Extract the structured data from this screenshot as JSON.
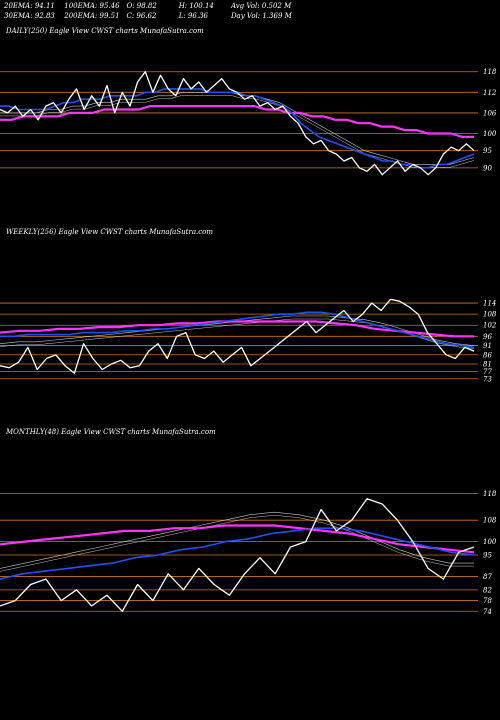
{
  "header": {
    "row1": [
      "20EMA: 94.11",
      "100EMA: 95.46",
      "O: 98.82",
      "H: 100.14",
      "Avg Vol: 0.502  M"
    ],
    "row2": [
      "30EMA: 92.83",
      "200EMA: 99.51",
      "C: 96.62",
      "L: 96.36",
      "Day Vol: 1.369 M"
    ]
  },
  "colors": {
    "background": "#000000",
    "price": "#ffffff",
    "ema_fast": "#1e50ff",
    "ema_slow": "#ff33ff",
    "grid": "#c8781e",
    "ema_thin": "#c8c8c8"
  },
  "chart_data": [
    {
      "type": "line",
      "label": "DAILY(250) Eagle  View  CWST charts MunafaSutra.com",
      "yticks": [
        "118",
        "112",
        "106",
        "100",
        "95",
        "90"
      ],
      "ylim": [
        85,
        122
      ],
      "series": [
        {
          "role": "price",
          "values": [
            107,
            106,
            108,
            105,
            107,
            104,
            108,
            109,
            106,
            110,
            113,
            107,
            111,
            108,
            114,
            106,
            112,
            108,
            115,
            118,
            112,
            117,
            113,
            111,
            116,
            113,
            115,
            112,
            114,
            116,
            113,
            112,
            110,
            111,
            108,
            109,
            107,
            108,
            105,
            103,
            99,
            97,
            98,
            95,
            94,
            92,
            93,
            90,
            89,
            91,
            88,
            90,
            92,
            89,
            91,
            90,
            88,
            90,
            94,
            96,
            95,
            97,
            95
          ]
        },
        {
          "role": "ema-blue",
          "values": [
            108,
            108,
            107,
            107,
            107,
            107,
            108,
            109,
            109,
            110,
            110,
            110,
            111,
            111,
            111,
            111,
            112,
            112,
            113,
            113,
            113,
            113,
            113,
            112,
            112,
            112,
            112,
            111,
            111,
            110,
            109,
            108,
            106,
            103,
            101,
            99,
            98,
            97,
            96,
            95,
            94,
            93,
            92,
            92,
            91,
            91,
            90,
            90,
            91,
            91,
            92,
            93,
            94
          ]
        },
        {
          "role": "ema-magenta",
          "values": [
            104,
            104,
            105,
            105,
            105,
            105,
            106,
            106,
            106,
            107,
            107,
            107,
            107,
            108,
            108,
            108,
            108,
            108,
            108,
            108,
            108,
            108,
            108,
            107,
            107,
            106,
            106,
            105,
            105,
            104,
            104,
            103,
            103,
            102,
            102,
            101,
            101,
            100,
            100,
            100,
            99,
            99
          ]
        },
        {
          "role": "ema-thin",
          "values": [
            106,
            106,
            106,
            106,
            107,
            107,
            108,
            108,
            109,
            109,
            110,
            110,
            110,
            111,
            111,
            112,
            112,
            112,
            112,
            112,
            111,
            111,
            110,
            109,
            107,
            105,
            103,
            101,
            99,
            97,
            95,
            94,
            93,
            92,
            91,
            91,
            91,
            91,
            92,
            93
          ]
        }
      ]
    },
    {
      "type": "line",
      "label": "WEEKLY(256) Eagle  View  CWST charts MunafaSutra.com",
      "yticks": [
        "114",
        "108",
        "102",
        "96",
        "91",
        "86",
        "81",
        "77",
        "73"
      ],
      "ylim": [
        68,
        120
      ],
      "series": [
        {
          "role": "price",
          "values": [
            80,
            79,
            82,
            90,
            78,
            84,
            86,
            80,
            76,
            92,
            84,
            78,
            81,
            83,
            79,
            80,
            88,
            92,
            84,
            96,
            98,
            86,
            84,
            88,
            82,
            86,
            90,
            80,
            84,
            88,
            92,
            96,
            100,
            104,
            98,
            102,
            106,
            110,
            104,
            108,
            114,
            110,
            116,
            115,
            112,
            108,
            98,
            92,
            86,
            84,
            90,
            88
          ]
        },
        {
          "role": "ema-blue",
          "values": [
            96,
            96,
            97,
            97,
            97,
            97,
            98,
            98,
            98,
            99,
            99,
            100,
            100,
            101,
            102,
            103,
            104,
            105,
            106,
            107,
            108,
            108,
            109,
            109,
            108,
            106,
            104,
            102,
            100,
            98,
            96,
            94,
            92,
            91,
            90
          ]
        },
        {
          "role": "ema-magenta",
          "values": [
            98,
            99,
            99,
            100,
            100,
            101,
            101,
            102,
            102,
            103,
            103,
            104,
            104,
            104,
            104,
            104,
            104,
            103,
            102,
            100,
            99,
            98,
            97,
            96,
            96
          ]
        },
        {
          "role": "ema-thin",
          "values": [
            92,
            93,
            93,
            94,
            95,
            96,
            97,
            98,
            99,
            100,
            101,
            102,
            103,
            104,
            105,
            106,
            107,
            107,
            107,
            106,
            105,
            103,
            100,
            97,
            94,
            92,
            91
          ]
        }
      ]
    },
    {
      "type": "line",
      "label": "MONTHLY(48) Eagle  View  CWST charts MunafaSutra.com",
      "yticks": [
        "118",
        "108",
        "100",
        "95",
        "87",
        "82",
        "78",
        "74"
      ],
      "ylim": [
        70,
        123
      ],
      "series": [
        {
          "role": "price",
          "values": [
            76,
            78,
            84,
            86,
            78,
            82,
            76,
            80,
            74,
            84,
            78,
            88,
            82,
            90,
            84,
            80,
            88,
            94,
            88,
            98,
            100,
            112,
            104,
            108,
            116,
            114,
            108,
            100,
            90,
            86,
            96,
            98
          ]
        },
        {
          "role": "ema-blue",
          "values": [
            86,
            88,
            89,
            90,
            91,
            92,
            94,
            95,
            97,
            98,
            100,
            101,
            103,
            104,
            105,
            105,
            104,
            102,
            100,
            98,
            96,
            95
          ]
        },
        {
          "role": "ema-magenta",
          "values": [
            99,
            100,
            101,
            102,
            103,
            104,
            104,
            105,
            105,
            106,
            106,
            106,
            105,
            104,
            103,
            101,
            99,
            98,
            97,
            96
          ]
        },
        {
          "role": "ema-thin",
          "values": [
            90,
            92,
            94,
            96,
            98,
            100,
            102,
            104,
            106,
            108,
            110,
            111,
            110,
            108,
            105,
            101,
            97,
            94,
            92,
            92
          ]
        }
      ]
    }
  ]
}
